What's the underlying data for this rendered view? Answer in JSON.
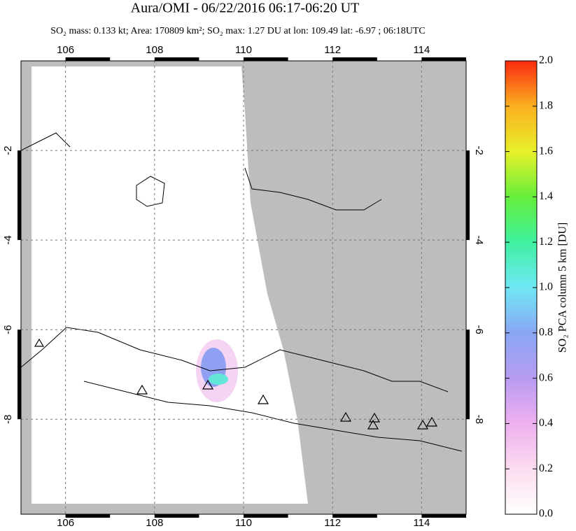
{
  "title": "Aura/OMI - 06/22/2016 06:17-06:20 UT",
  "subtitle": "SO₂ mass: 0.133 kt; Area: 170809 km²; SO₂ max: 1.27 DU at lon: 109.49 lat: -6.97 ; 06:18UTC",
  "map": {
    "xlim": [
      105,
      115
    ],
    "ylim": [
      -10.12,
      0
    ],
    "xticks": [
      106,
      108,
      110,
      112,
      114
    ],
    "yticks": [
      -2,
      -4,
      -6,
      -8
    ],
    "grid": true
  },
  "colorbar": {
    "label": "SO₂ PCA column 5 km [DU]",
    "lim": [
      0,
      2
    ],
    "ticks": [
      {
        "value": 0,
        "label": "0.0"
      },
      0.2,
      0.4,
      0.6,
      0.8,
      {
        "value": 1,
        "label": "1.0"
      },
      1.2,
      1.4,
      1.6,
      1.8,
      {
        "value": 2,
        "label": "2.0"
      }
    ]
  }
}
